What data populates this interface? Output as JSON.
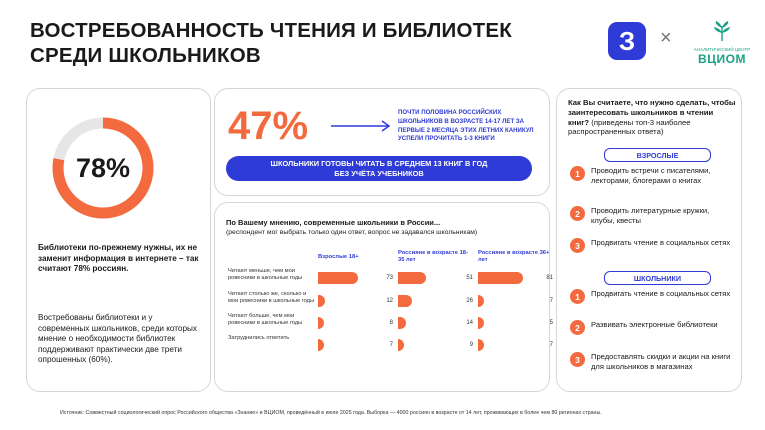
{
  "title_line1": "ВОСТРЕБОВАННОСТЬ ЧТЕНИЯ И БИБЛИОТЕК",
  "title_line2": "СРЕДИ ШКОЛЬНИКОВ",
  "logos": {
    "z_letter": "З",
    "cross": "×",
    "vciom_small": "АНАЛИТИЧЕСКИЙ ЦЕНТР",
    "vciom_name": "ВЦИОМ"
  },
  "colors": {
    "orange": "#f26a3d",
    "blue": "#2f3bd6",
    "grey": "#e6e6e6",
    "green": "#1aa184"
  },
  "libraries": {
    "donut_value": "78%",
    "donut_fraction": 0.78,
    "text1": "Библиотеки по-прежнему нужны, их не заменит информация в интернете – так считают 78% россиян.",
    "text2": "Востребованы библиотеки и у современных школьников, среди которых мнение о необходимости библиотек поддерживают практически две трети опрошенных (60%)."
  },
  "reading": {
    "big_value": "47%",
    "note": "почти половина российских школьников в возрасте 14-17 лет за первые 2 месяца этих летних каникул успели прочитать 1-3 книги",
    "pill_line1": "ШКОЛЬНИКИ ГОТОВЫ ЧИТАТЬ В СРЕДНЕМ 13 КНИГ В ГОД",
    "pill_line2": "БЕЗ УЧЁТА УЧЕБНИКОВ"
  },
  "survey": {
    "question": "По Вашему мнению, современные школьники в России...",
    "subnote": "(респондент мог выбрать только один ответ, вопрос не задавался школьникам)"
  },
  "chart_data": {
    "type": "bar",
    "orientation": "horizontal",
    "categories": [
      "Читают меньше, чем мои ровесники в школьные годы",
      "Читают столько же, сколько и мои ровесники в школьные годы",
      "Читают больше, чем мои ровесники в школьные годы",
      "Затруднились ответить"
    ],
    "series": [
      {
        "name": "Взрослые 18+",
        "values": [
          73,
          12,
          8,
          7
        ]
      },
      {
        "name": "Россияне в возрасте 18-35 лет",
        "values": [
          51,
          26,
          14,
          9
        ]
      },
      {
        "name": "Россияне в возрасте 36+ лет",
        "values": [
          81,
          7,
          5,
          7
        ]
      }
    ],
    "xlim": [
      0,
      100
    ]
  },
  "measures": {
    "question": "Как Вы считаете, что нужно сделать, чтобы заинтересовать школьников в чтении книг?",
    "subnote": "(приведены топ-3 наиболее распространенных ответа)",
    "adults_label": "ВЗРОСЛЫЕ",
    "adults": [
      {
        "n": "1",
        "text": "Проводить встречи с писателями, лекторами, блогерами о книгах"
      },
      {
        "n": "2",
        "text": "Проводить литературные кружки, клубы, квесты"
      },
      {
        "n": "3",
        "text": "Продвигать чтение в социальных сетях"
      }
    ],
    "pupils_label": "ШКОЛЬНИКИ",
    "pupils": [
      {
        "n": "1",
        "text": "Продвигать чтение в социальных сетях"
      },
      {
        "n": "2",
        "text": "Развивать электронные библиотеки"
      },
      {
        "n": "3",
        "text": "Предоставлять скидки и акции на книги для школьников в магазинах"
      }
    ]
  },
  "source": "Источник: Совместный социологический опрос Российского общества «Знание» и ВЦИОМ, проведённый в июле 2025 года. Выборка — 4000 россиян в возрасте от 14 лет, проживающих в более чем 80 регионах страны."
}
